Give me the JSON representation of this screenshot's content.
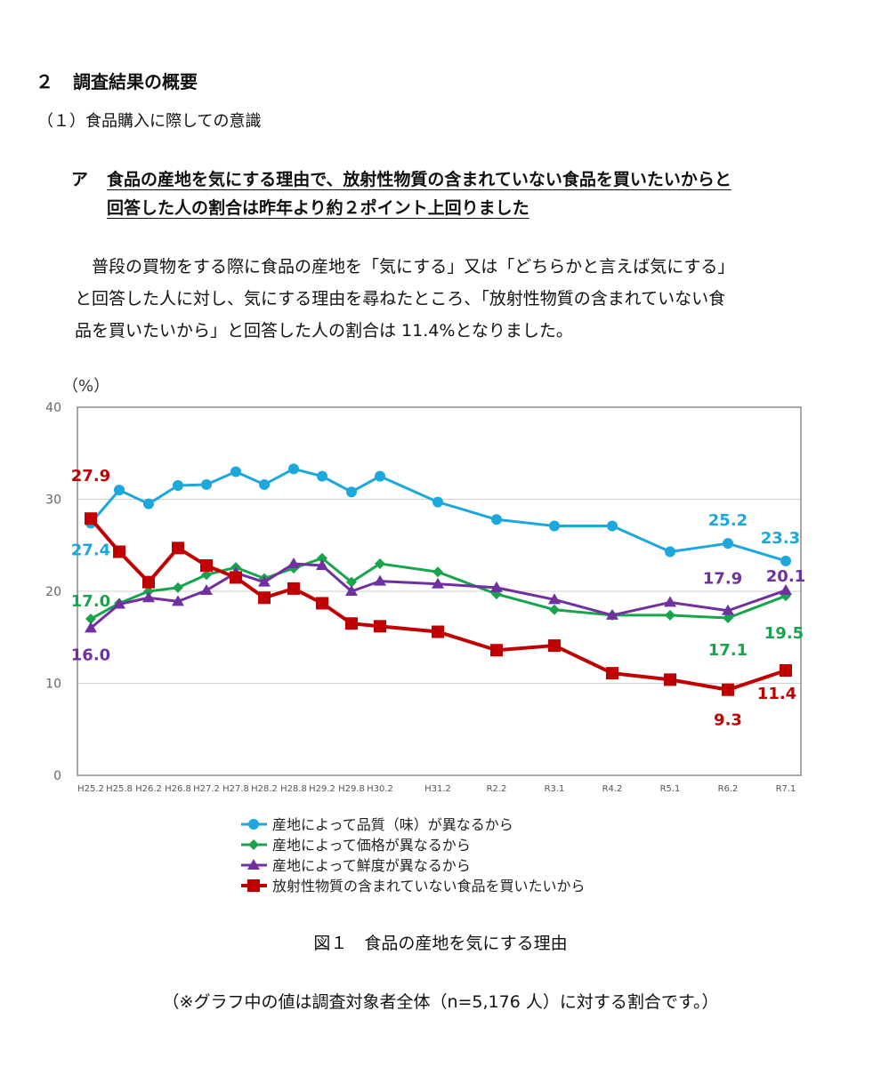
{
  "section": {
    "number": "２",
    "title": "調査結果の概要"
  },
  "subsection": {
    "title": "（１）食品購入に際しての意識"
  },
  "item": {
    "marker": "ア",
    "line1": "食品の産地を気にする理由で、放射性物質の含まれていない食品を買いたいからと",
    "line2": "回答した人の割合は昨年より約２ポイント上回りました"
  },
  "paragraph": {
    "line1": "普段の買物をする際に食品の産地を「気にする」又は「どちらかと言えば気にする」",
    "line2": "と回答した人に対し、気にする理由を尋ねたところ、「放射性物質の含まれていない食",
    "line3": "品を買いたいから」と回答した人の割合は 11.4%となりました。"
  },
  "figure": {
    "caption": "図１　食品の産地を気にする理由",
    "note": "（※グラフ中の値は調査対象者全体（n=5,176 人）に対する割合です。）"
  },
  "chart_data": {
    "type": "line",
    "ylabel": "（%）",
    "ylim": [
      0,
      40
    ],
    "yticks": [
      0,
      10,
      20,
      30,
      40
    ],
    "grid": true,
    "legend_placement": "bottom",
    "x": [
      "H25.2",
      "H25.8",
      "H26.2",
      "H26.8",
      "H27.2",
      "H27.8",
      "H28.2",
      "H28.8",
      "H29.2",
      "H29.8",
      "H30.2",
      "H31.2",
      "R2.2",
      "R3.1",
      "R4.2",
      "R5.1",
      "R6.2",
      "R7.1"
    ],
    "series": [
      {
        "name": "産地によって品質（味）が異なるから",
        "color": "#1ca7dd",
        "marker": "circle",
        "values": [
          27.4,
          31.0,
          29.5,
          31.5,
          31.6,
          33.0,
          31.6,
          33.3,
          32.5,
          30.8,
          32.5,
          29.7,
          27.8,
          27.1,
          27.1,
          24.3,
          25.2,
          23.3
        ],
        "labels": [
          {
            "index": 0,
            "text": "27.4"
          },
          {
            "index": 16,
            "text": "25.2"
          },
          {
            "index": 17,
            "text": "23.3"
          }
        ]
      },
      {
        "name": "産地によって価格が異なるから",
        "color": "#17a44d",
        "marker": "diamond",
        "values": [
          17.0,
          18.7,
          20.0,
          20.4,
          21.8,
          22.6,
          21.4,
          22.5,
          23.6,
          21.0,
          23.0,
          22.1,
          19.7,
          18.0,
          17.4,
          17.4,
          17.1,
          19.5
        ],
        "labels": [
          {
            "index": 0,
            "text": "17.0"
          },
          {
            "index": 16,
            "text": "17.1"
          },
          {
            "index": 17,
            "text": "19.5"
          }
        ]
      },
      {
        "name": "産地によって鮮度が異なるから",
        "color": "#7030a0",
        "marker": "triangle",
        "values": [
          16.0,
          18.6,
          19.3,
          18.9,
          20.1,
          22.0,
          21.0,
          23.0,
          22.8,
          20.0,
          21.1,
          20.8,
          20.4,
          19.1,
          17.4,
          18.8,
          17.9,
          20.1
        ],
        "labels": [
          {
            "index": 0,
            "text": "16.0"
          },
          {
            "index": 16,
            "text": "17.9"
          },
          {
            "index": 17,
            "text": "20.1"
          }
        ]
      },
      {
        "name": "放射性物質の含まれていない食品を買いたいから",
        "color": "#c00000",
        "marker": "square",
        "values": [
          27.9,
          24.3,
          21.0,
          24.7,
          22.8,
          21.5,
          19.3,
          20.3,
          18.7,
          16.5,
          16.2,
          15.6,
          13.6,
          14.1,
          11.1,
          10.4,
          9.3,
          11.4
        ],
        "labels": [
          {
            "index": 0,
            "text": "27.9"
          },
          {
            "index": 16,
            "text": "9.3"
          },
          {
            "index": 17,
            "text": "11.4"
          }
        ]
      }
    ]
  }
}
